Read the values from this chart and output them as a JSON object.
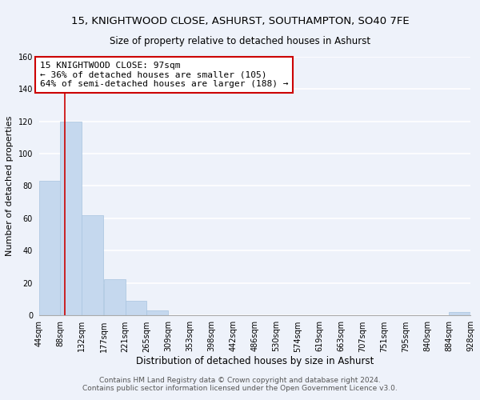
{
  "title1": "15, KNIGHTWOOD CLOSE, ASHURST, SOUTHAMPTON, SO40 7FE",
  "title2": "Size of property relative to detached houses in Ashurst",
  "xlabel": "Distribution of detached houses by size in Ashurst",
  "ylabel": "Number of detached properties",
  "bar_edges": [
    44,
    88,
    132,
    177,
    221,
    265,
    309,
    353,
    398,
    442,
    486,
    530,
    574,
    619,
    663,
    707,
    751,
    795,
    840,
    884,
    928
  ],
  "bar_heights": [
    83,
    120,
    62,
    22,
    9,
    3,
    0,
    0,
    0,
    0,
    0,
    0,
    0,
    0,
    0,
    0,
    0,
    0,
    0,
    2
  ],
  "bar_color": "#c5d8ee",
  "bar_edge_color": "#a8c4e0",
  "property_line_x": 97,
  "property_line_color": "#cc0000",
  "annotation_line1": "15 KNIGHTWOOD CLOSE: 97sqm",
  "annotation_line2": "← 36% of detached houses are smaller (105)",
  "annotation_line3": "64% of semi-detached houses are larger (188) →",
  "annotation_box_color": "#ffffff",
  "annotation_box_edge": "#cc0000",
  "ylim": [
    0,
    160
  ],
  "yticks": [
    0,
    20,
    40,
    60,
    80,
    100,
    120,
    140,
    160
  ],
  "xtick_labels": [
    "44sqm",
    "88sqm",
    "132sqm",
    "177sqm",
    "221sqm",
    "265sqm",
    "309sqm",
    "353sqm",
    "398sqm",
    "442sqm",
    "486sqm",
    "530sqm",
    "574sqm",
    "619sqm",
    "663sqm",
    "707sqm",
    "751sqm",
    "795sqm",
    "840sqm",
    "884sqm",
    "928sqm"
  ],
  "footer1": "Contains HM Land Registry data © Crown copyright and database right 2024.",
  "footer2": "Contains public sector information licensed under the Open Government Licence v3.0.",
  "background_color": "#eef2fa",
  "grid_color": "#ffffff",
  "title1_fontsize": 9.5,
  "title2_fontsize": 8.5,
  "xlabel_fontsize": 8.5,
  "ylabel_fontsize": 8,
  "footer_fontsize": 6.5,
  "annotation_fontsize": 8,
  "tick_fontsize": 7
}
